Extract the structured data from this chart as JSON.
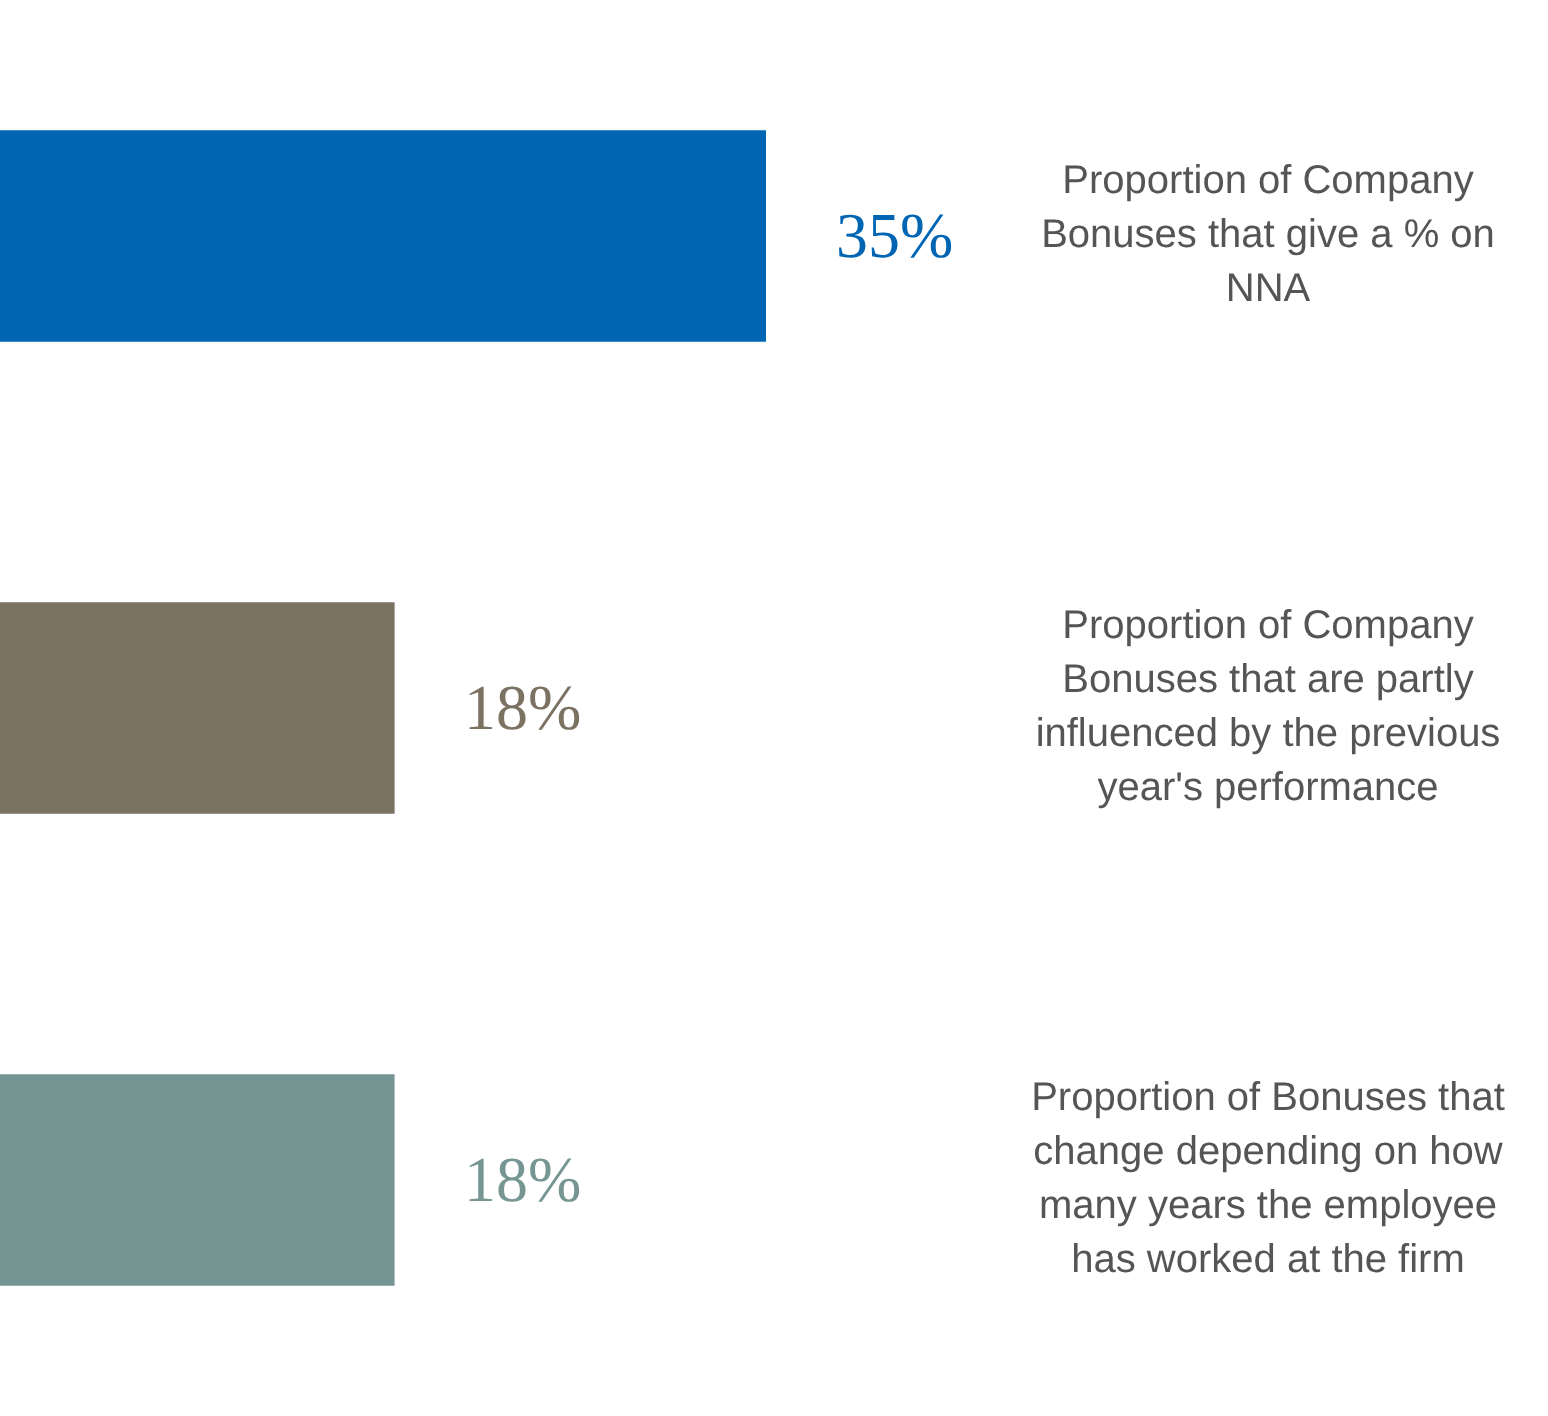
{
  "chart_data": {
    "type": "bar",
    "orientation": "horizontal",
    "tick_labels": false,
    "legend": false,
    "categories": [
      "Proportion of Company Bonuses that give a % on NNA",
      "Proportion of Company Bonuses that are partly influenced by the previous year's performance",
      "Proportion of Bonuses that change depending on how many years the employee has worked at the firm"
    ],
    "values": [
      35,
      18,
      18
    ],
    "value_labels": [
      "35%",
      "18%",
      "18%"
    ],
    "colors": [
      "#0066b3",
      "#7b7262",
      "#769693"
    ]
  }
}
